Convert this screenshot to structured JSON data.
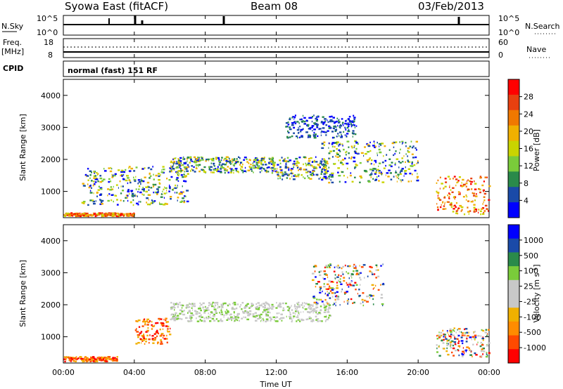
{
  "header": {
    "station": "Syowa East (fitACF)",
    "beam": "Beam 08",
    "date": "03/Feb/2013"
  },
  "side_labels": {
    "nsky": "N.Sky",
    "nsearch": "N.Search",
    "freq": "Freq.",
    "freq_unit": "[MHz]",
    "nave": "Nave",
    "cpid": "CPID"
  },
  "noise_panel": {
    "left_ticks": [
      "10^5",
      "10^0"
    ],
    "right_ticks": [
      "10^5",
      "10^0"
    ]
  },
  "freq_panel": {
    "left_ticks": [
      "18",
      "8"
    ],
    "right_ticks": [
      "60",
      "0"
    ]
  },
  "cpid_panel": {
    "text": "normal (fast) 151 RF"
  },
  "colors": {
    "power": [
      "#0000ff",
      "#1a4aa8",
      "#2a8a4a",
      "#7acb3a",
      "#c9d400",
      "#f0b000",
      "#f07800",
      "#e84010",
      "#ff0000"
    ],
    "velocity": [
      "#ff0000",
      "#ff4a00",
      "#ff8c00",
      "#f0b000",
      "#c8c8c8",
      "#c8c8c8",
      "#7acb3a",
      "#2a8a4a",
      "#1a4aa8",
      "#0000ff"
    ]
  },
  "chart_data": [
    {
      "type": "heatmap",
      "panel": "power",
      "ylabel": "Slant Range [km]",
      "ylim": [
        180,
        4500
      ],
      "yticks": [
        "1000",
        "2000",
        "3000",
        "4000"
      ],
      "xlim": [
        "00:00",
        "24:00"
      ],
      "colorbar": {
        "label": "Power [dB]",
        "ticks": [
          "4",
          "8",
          "12",
          "16",
          "20",
          "24",
          "28"
        ]
      },
      "echo_regions": [
        {
          "t": [
            0.0,
            4.0
          ],
          "range": [
            250,
            350
          ],
          "level": "high"
        },
        {
          "t": [
            1.0,
            7.0
          ],
          "range": [
            600,
            1800
          ],
          "level": "mixed"
        },
        {
          "t": [
            6.0,
            12.0
          ],
          "range": [
            1600,
            2100
          ],
          "level": "moderate"
        },
        {
          "t": [
            12.0,
            15.0
          ],
          "range": [
            1400,
            2100
          ],
          "level": "moderate-high"
        },
        {
          "t": [
            12.5,
            16.5
          ],
          "range": [
            2700,
            3400
          ],
          "level": "low"
        },
        {
          "t": [
            14.5,
            20.0
          ],
          "range": [
            1300,
            2600
          ],
          "level": "low-moderate"
        },
        {
          "t": [
            21.0,
            24.0
          ],
          "range": [
            300,
            1500
          ],
          "level": "high"
        }
      ]
    },
    {
      "type": "heatmap",
      "panel": "velocity",
      "ylabel": "Slant Range [km]",
      "xlabel": "Time UT",
      "ylim": [
        180,
        4500
      ],
      "yticks": [
        "1000",
        "2000",
        "3000",
        "4000"
      ],
      "xticks": [
        "00:00",
        "04:00",
        "08:00",
        "12:00",
        "16:00",
        "20:00",
        "00:00"
      ],
      "colorbar": {
        "label": "Velocity [m s",
        "label_sup": "-1",
        "label_end": "]",
        "ticks": [
          "1000",
          "500",
          "100",
          "25",
          "-25",
          "-100",
          "-500",
          "-1000"
        ]
      },
      "echo_regions": [
        {
          "t": [
            0.0,
            3.0
          ],
          "range": [
            250,
            400
          ],
          "velocity": "negative"
        },
        {
          "t": [
            4.0,
            6.0
          ],
          "range": [
            800,
            1600
          ],
          "velocity": "negative"
        },
        {
          "t": [
            6.0,
            15.0
          ],
          "range": [
            1500,
            2100
          ],
          "velocity": "near-zero"
        },
        {
          "t": [
            14.0,
            18.0
          ],
          "range": [
            2000,
            3300
          ],
          "velocity": "mixed"
        },
        {
          "t": [
            21.0,
            24.0
          ],
          "range": [
            400,
            1300
          ],
          "velocity": "mixed"
        }
      ]
    }
  ]
}
